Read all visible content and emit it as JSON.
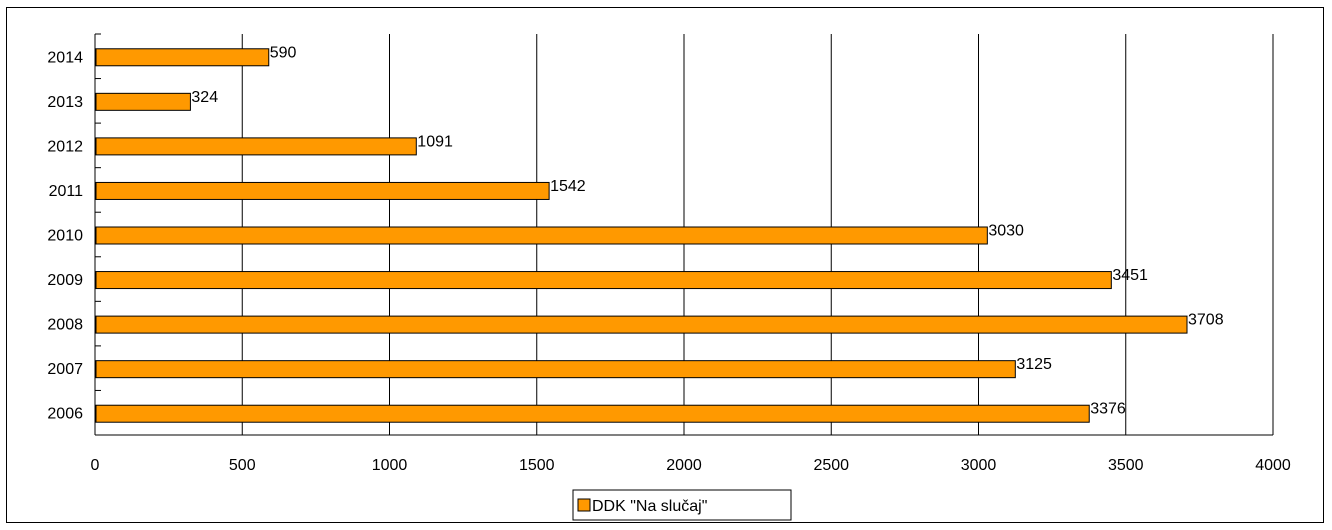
{
  "chart_data": {
    "type": "bar",
    "orientation": "horizontal",
    "categories": [
      "2006",
      "2007",
      "2008",
      "2009",
      "2010",
      "2011",
      "2012",
      "2013",
      "2014"
    ],
    "series": [
      {
        "name": "DDK \"Na slučaj\"",
        "values": [
          3376,
          3125,
          3708,
          3451,
          3030,
          1542,
          1091,
          324,
          590
        ]
      }
    ],
    "value_labels": [
      "3376",
      "3125",
      "3708",
      "3451",
      "3030",
      "1542",
      "1091",
      "324",
      "590"
    ],
    "xlim": [
      0,
      4000
    ],
    "x_ticks": [
      0,
      500,
      1000,
      1500,
      2000,
      2500,
      3000,
      3500,
      4000
    ],
    "x_tick_labels": [
      "0",
      "500",
      "1000",
      "1500",
      "2000",
      "2500",
      "3000",
      "3500",
      "4000"
    ],
    "title": "",
    "xlabel": "",
    "ylabel": "",
    "grid": "vertical",
    "legend_position": "bottom-center",
    "colors": {
      "bar_fill": "#FF9900",
      "bar_stroke": "#000000",
      "grid": "#000000",
      "background": "#FFFFFF"
    }
  },
  "legend": {
    "label": "DDK \"Na slučaj\""
  }
}
